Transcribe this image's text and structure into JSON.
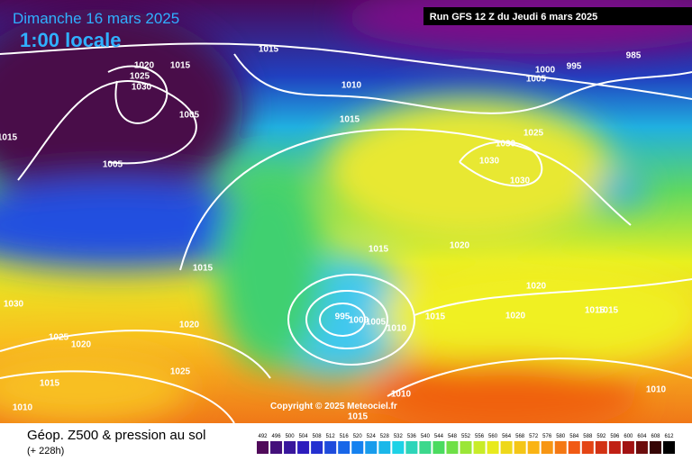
{
  "header": {
    "date": "Dimanche 16 mars 2025",
    "time": "1:00 locale",
    "run": "Run GFS 12 Z du Jeudi 6 mars 2025"
  },
  "footer": {
    "title": "Géop. Z500 & pression au sol",
    "lead": "(+ 228h)",
    "copyright": "Copyright © 2025 Meteociel.fr"
  },
  "colorbar": {
    "labels": [
      492,
      496,
      500,
      504,
      508,
      512,
      516,
      520,
      524,
      528,
      532,
      536,
      540,
      544,
      548,
      552,
      556,
      560,
      564,
      568,
      572,
      576,
      580,
      584,
      588,
      592,
      596,
      600,
      604,
      608,
      612
    ]
  },
  "isobar_labels": [
    1015,
    1020,
    1015,
    1025,
    1030,
    1005,
    1015,
    1005,
    1010,
    1015,
    1000,
    995,
    985,
    1005,
    1025,
    1030,
    1030,
    1030,
    1015,
    1020,
    1015,
    1030,
    1020,
    1020,
    1015,
    1010,
    1005,
    1000,
    995,
    1015,
    1015,
    1020,
    1025,
    1020,
    1025,
    1015,
    1010,
    1010,
    1010,
    1015
  ]
}
